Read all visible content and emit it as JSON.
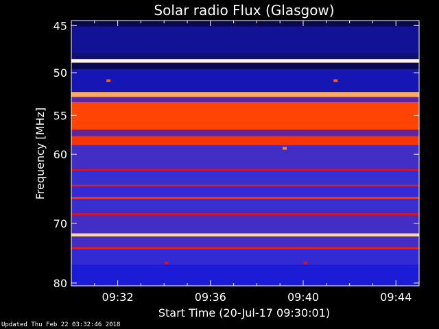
{
  "chart_data": {
    "type": "heatmap",
    "title": "Solar radio Flux (Glasgow)",
    "xlabel": "Start Time (20-Jul-17 09:30:01)",
    "ylabel": "Frequency [MHz]",
    "x_ticks": [
      "09:32",
      "09:36",
      "09:40",
      "09:44"
    ],
    "x_tick_minutes": [
      2,
      6,
      10,
      14
    ],
    "x_range_minutes": [
      0,
      15
    ],
    "y_ticks": [
      45,
      50,
      55,
      60,
      70,
      80
    ],
    "y_scale": "log",
    "ylim": [
      44.5,
      80.5
    ],
    "y_inverted": true,
    "colormap": [
      "#000000",
      "#1a1ad6",
      "#3a2fd0",
      "#8e1860",
      "#e81010",
      "#ff4000",
      "#ffb060",
      "#ffffff"
    ],
    "bands": [
      {
        "f0": 44.5,
        "f1": 45.1,
        "level": 0.05
      },
      {
        "f0": 45.1,
        "f1": 47.8,
        "level": 0.1
      },
      {
        "f0": 47.8,
        "f1": 48.5,
        "level": 0.08
      },
      {
        "f0": 48.5,
        "f1": 48.9,
        "level": 0.98
      },
      {
        "f0": 48.9,
        "f1": 49.6,
        "level": 0.05
      },
      {
        "f0": 49.6,
        "f1": 52.2,
        "level": 0.12
      },
      {
        "f0": 52.2,
        "f1": 52.8,
        "level": 0.85
      },
      {
        "f0": 52.8,
        "f1": 53.4,
        "level": 0.35
      },
      {
        "f0": 53.4,
        "f1": 56.8,
        "level": 0.72
      },
      {
        "f0": 56.8,
        "f1": 57.6,
        "level": 0.35
      },
      {
        "f0": 57.6,
        "f1": 58.8,
        "level": 0.68
      },
      {
        "f0": 58.8,
        "f1": 62.0,
        "level": 0.3
      },
      {
        "f0": 62.0,
        "f1": 62.3,
        "level": 0.55
      },
      {
        "f0": 62.3,
        "f1": 64.2,
        "level": 0.28
      },
      {
        "f0": 64.2,
        "f1": 64.5,
        "level": 0.6
      },
      {
        "f0": 64.5,
        "f1": 66.0,
        "level": 0.25
      },
      {
        "f0": 66.0,
        "f1": 66.3,
        "level": 0.7
      },
      {
        "f0": 66.3,
        "f1": 68.4,
        "level": 0.28
      },
      {
        "f0": 68.4,
        "f1": 68.8,
        "level": 0.55
      },
      {
        "f0": 68.8,
        "f1": 71.6,
        "level": 0.3
      },
      {
        "f0": 71.6,
        "f1": 72.1,
        "level": 0.92
      },
      {
        "f0": 72.1,
        "f1": 73.8,
        "level": 0.3
      },
      {
        "f0": 73.8,
        "f1": 74.2,
        "level": 0.6
      },
      {
        "f0": 74.2,
        "f1": 76.8,
        "level": 0.25
      },
      {
        "f0": 76.8,
        "f1": 80.5,
        "level": 0.15
      }
    ],
    "spots": [
      {
        "t": 1.6,
        "f": 50.9,
        "level": 0.75
      },
      {
        "t": 11.4,
        "f": 50.9,
        "level": 0.75
      },
      {
        "t": 9.2,
        "f": 59.2,
        "level": 0.8
      },
      {
        "t": 4.1,
        "f": 76.5,
        "level": 0.55
      },
      {
        "t": 10.1,
        "f": 76.5,
        "level": 0.55
      }
    ]
  },
  "footer": {
    "updated": "Updated Thu Feb 22 03:32:46 2018"
  }
}
